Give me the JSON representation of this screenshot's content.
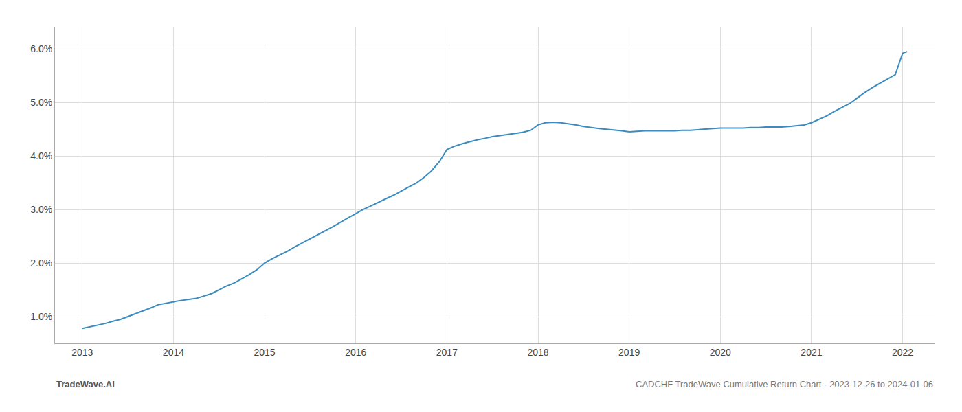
{
  "chart_data": {
    "type": "line",
    "title": "CADCHF TradeWave Cumulative Return Chart - 2023-12-26 to 2024-01-06",
    "annotations": [
      "TradeWave.AI"
    ],
    "x": [
      2013.0,
      2013.08,
      2013.17,
      2013.25,
      2013.33,
      2013.42,
      2013.5,
      2013.58,
      2013.67,
      2013.75,
      2013.83,
      2013.92,
      2014.0,
      2014.08,
      2014.17,
      2014.25,
      2014.33,
      2014.42,
      2014.5,
      2014.58,
      2014.67,
      2014.75,
      2014.83,
      2014.92,
      2015.0,
      2015.08,
      2015.17,
      2015.25,
      2015.33,
      2015.42,
      2015.5,
      2015.58,
      2015.67,
      2015.75,
      2015.83,
      2015.92,
      2016.0,
      2016.08,
      2016.17,
      2016.25,
      2016.33,
      2016.42,
      2016.5,
      2016.58,
      2016.67,
      2016.75,
      2016.83,
      2016.92,
      2017.0,
      2017.08,
      2017.17,
      2017.25,
      2017.33,
      2017.42,
      2017.5,
      2017.58,
      2017.67,
      2017.75,
      2017.83,
      2017.92,
      2018.0,
      2018.08,
      2018.17,
      2018.25,
      2018.33,
      2018.42,
      2018.5,
      2018.58,
      2018.67,
      2018.75,
      2018.83,
      2018.92,
      2019.0,
      2019.08,
      2019.17,
      2019.25,
      2019.33,
      2019.42,
      2019.5,
      2019.58,
      2019.67,
      2019.75,
      2019.83,
      2019.92,
      2020.0,
      2020.08,
      2020.17,
      2020.25,
      2020.33,
      2020.42,
      2020.5,
      2020.58,
      2020.67,
      2020.75,
      2020.83,
      2020.92,
      2021.0,
      2021.08,
      2021.17,
      2021.25,
      2021.33,
      2021.42,
      2021.5,
      2021.58,
      2021.67,
      2021.75,
      2021.83,
      2021.92,
      2022.0,
      2022.05
    ],
    "values": [
      0.78,
      0.81,
      0.84,
      0.87,
      0.91,
      0.95,
      1.0,
      1.05,
      1.1,
      1.16,
      1.22,
      1.25,
      1.28,
      1.3,
      1.32,
      1.34,
      1.38,
      1.43,
      1.5,
      1.57,
      1.63,
      1.7,
      1.78,
      1.88,
      2.0,
      2.08,
      2.15,
      2.22,
      2.3,
      2.38,
      2.45,
      2.52,
      2.6,
      2.68,
      2.76,
      2.85,
      2.93,
      3.0,
      3.07,
      3.13,
      3.2,
      3.27,
      3.34,
      3.42,
      3.5,
      3.6,
      3.72,
      3.9,
      4.12,
      4.18,
      4.23,
      4.27,
      4.3,
      4.33,
      4.36,
      4.38,
      4.4,
      4.42,
      4.44,
      4.48,
      4.58,
      4.62,
      4.63,
      4.62,
      4.6,
      4.58,
      4.55,
      4.53,
      4.51,
      4.5,
      4.49,
      4.47,
      4.45,
      4.46,
      4.47,
      4.47,
      4.47,
      4.47,
      4.47,
      4.48,
      4.48,
      4.49,
      4.5,
      4.51,
      4.52,
      4.52,
      4.52,
      4.52,
      4.53,
      4.53,
      4.54,
      4.54,
      4.54,
      4.55,
      4.56,
      4.58,
      4.62,
      4.68,
      4.75,
      4.83,
      4.9,
      4.98,
      5.08,
      5.18,
      5.28,
      5.36,
      5.44,
      5.52,
      5.92,
      5.95
    ],
    "color": "#3a8bbf",
    "xlim": [
      2012.7,
      2022.35
    ],
    "xticks": [
      2013,
      2014,
      2015,
      2016,
      2017,
      2018,
      2019,
      2020,
      2021,
      2022
    ],
    "ylim": [
      0.5,
      6.4
    ],
    "yticks": [
      {
        "value": 1.0,
        "label": "1.0%"
      },
      {
        "value": 2.0,
        "label": "2.0%"
      },
      {
        "value": 3.0,
        "label": "3.0%"
      },
      {
        "value": 4.0,
        "label": "4.0%"
      },
      {
        "value": 5.0,
        "label": "5.0%"
      },
      {
        "value": 6.0,
        "label": "6.0%"
      }
    ],
    "grid": true
  }
}
